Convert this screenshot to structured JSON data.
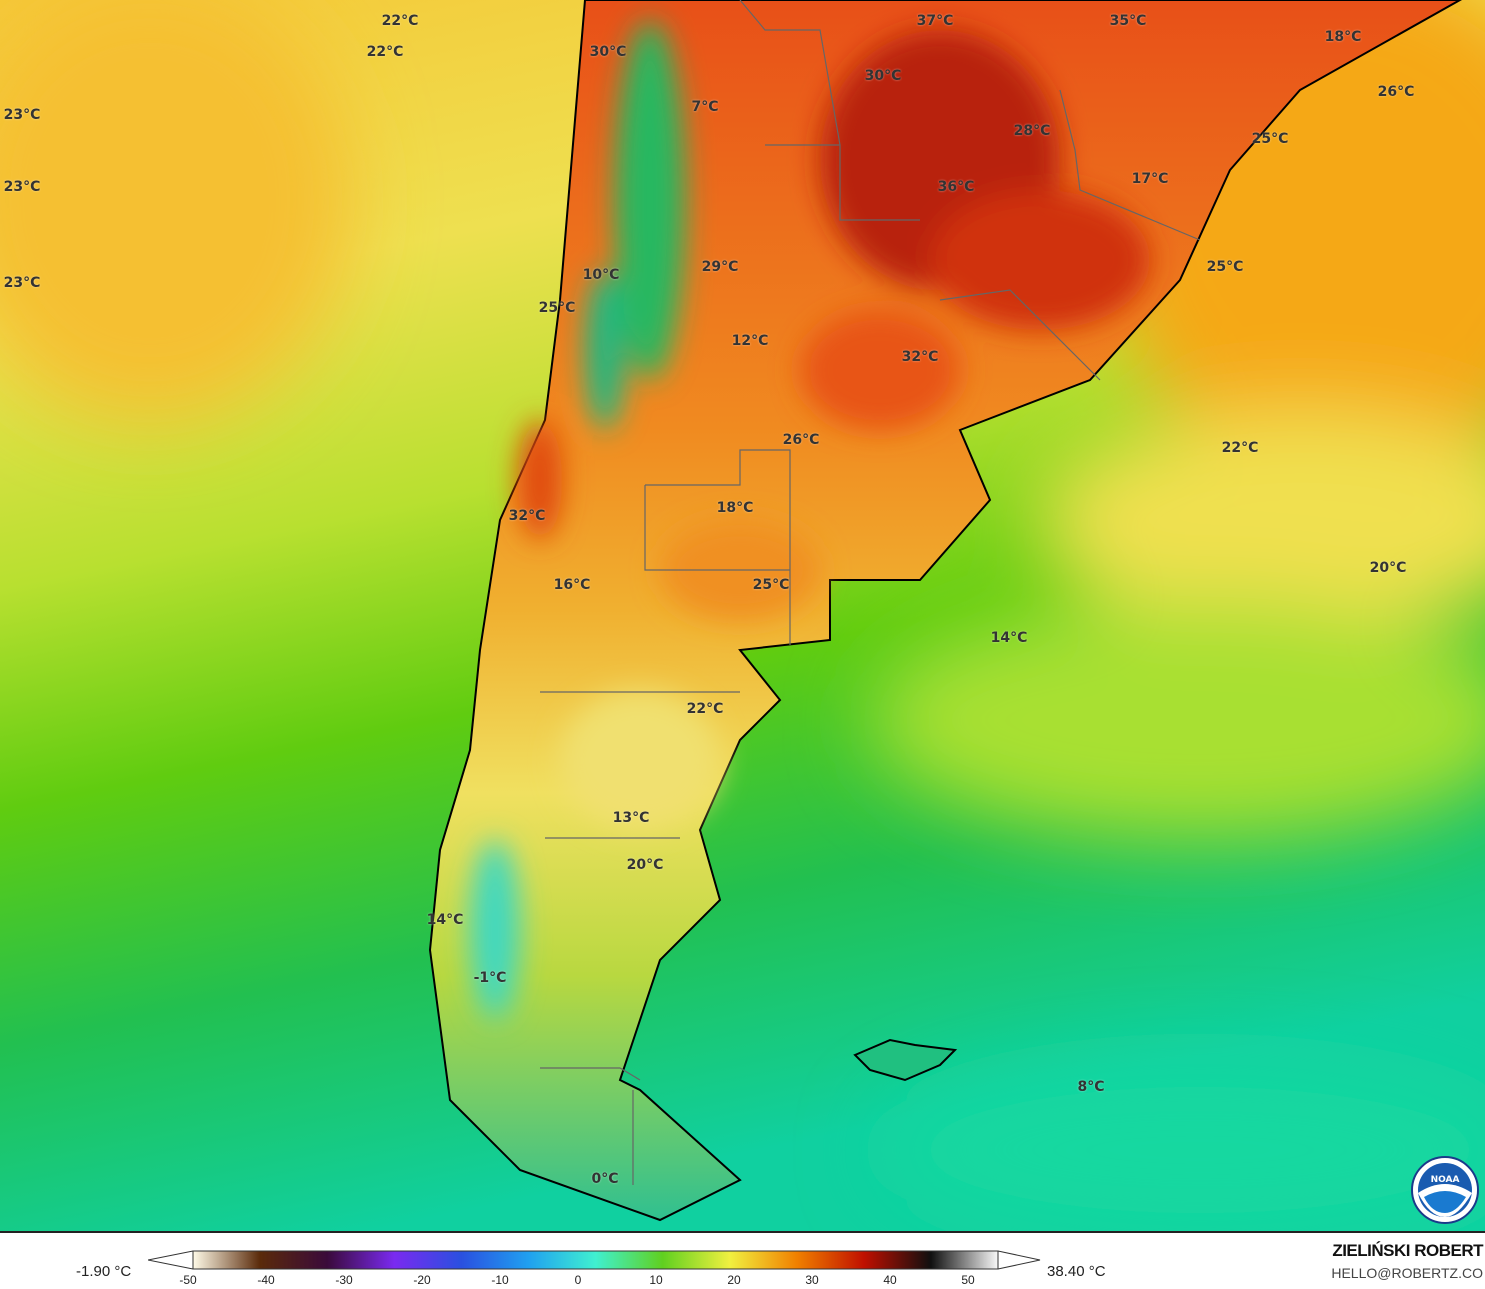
{
  "map": {
    "variable_unit": "°C",
    "labels": [
      "22°C",
      "22°C",
      "23°C",
      "23°C",
      "23°C",
      "30°C",
      "7°C",
      "37°C",
      "35°C",
      "18°C",
      "26°C",
      "30°C",
      "28°C",
      "25°C",
      "36°C",
      "17°C",
      "10°C",
      "29°C",
      "25°C",
      "25°C",
      "12°C",
      "32°C",
      "26°C",
      "22°C",
      "18°C",
      "32°C",
      "20°C",
      "16°C",
      "25°C",
      "14°C",
      "22°C",
      "13°C",
      "20°C",
      "14°C",
      "-1°C",
      "8°C",
      "0°C"
    ],
    "logo": "NOAA"
  },
  "legend": {
    "min_value": "-1.90 °C",
    "max_value": "38.40 °C",
    "ticks": [
      "-50",
      "-40",
      "-30",
      "-20",
      "-10",
      "0",
      "10",
      "20",
      "30",
      "40",
      "50"
    ],
    "colors": [
      "#fffbe8",
      "#5a2a0a",
      "#3a0a3a",
      "#7a2af0",
      "#2a50e0",
      "#20a0f0",
      "#40f0d0",
      "#60d020",
      "#f0f040",
      "#f08000",
      "#c01000",
      "#101010",
      "#f8f8f8"
    ]
  },
  "credit": {
    "author": "ZIELIŃSKI ROBERT",
    "email": "HELLO@ROBERTZ.CO"
  }
}
